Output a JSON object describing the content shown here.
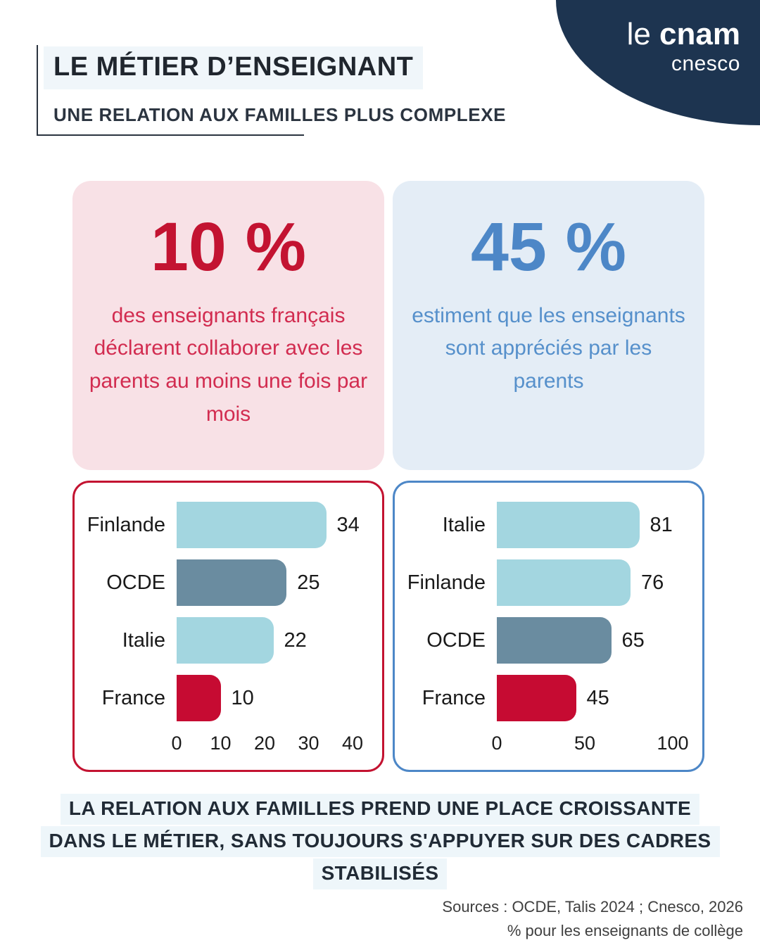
{
  "brand": {
    "logo_light": "le ",
    "logo_bold": "cnam",
    "logo_sub": "cnesco",
    "blob_color": "#1d3450"
  },
  "header": {
    "title": "LE MÉTIER D’ENSEIGNANT",
    "subtitle": "UNE RELATION AUX FAMILLES PLUS COMPLEXE",
    "highlight_color": "#f0f6fa"
  },
  "stat_cards": [
    {
      "value": "10 %",
      "description": "des enseignants français déclarent collaborer avec les parents au moins une fois par mois",
      "accent": "#c31331",
      "text_color": "#d22c50",
      "bg": "#f8e1e6"
    },
    {
      "value": "45 %",
      "description": "estiment que les enseignants sont appréciés par les parents",
      "accent": "#4d87c7",
      "text_color": "#5690cb",
      "bg": "#e4edf6"
    }
  ],
  "chart_data": [
    {
      "type": "bar",
      "orientation": "horizontal",
      "title": "",
      "categories": [
        "Finlande",
        "OCDE",
        "Italie",
        "France"
      ],
      "values": [
        34,
        25,
        22,
        10
      ],
      "bar_colors": [
        "#a3d6e0",
        "#6a8ca0",
        "#a3d6e0",
        "#c60b32"
      ],
      "xlim": [
        0,
        40
      ],
      "xticks": [
        0,
        10,
        20,
        30,
        40
      ],
      "grid": false,
      "legend": false,
      "border_color": "#c31331"
    },
    {
      "type": "bar",
      "orientation": "horizontal",
      "title": "",
      "categories": [
        "Italie",
        "Finlande",
        "OCDE",
        "France"
      ],
      "values": [
        81,
        76,
        65,
        45
      ],
      "bar_colors": [
        "#a3d6e0",
        "#a3d6e0",
        "#6a8ca0",
        "#c60b32"
      ],
      "xlim": [
        0,
        100
      ],
      "xticks": [
        0,
        50,
        100
      ],
      "grid": false,
      "legend": false,
      "border_color": "#4d87c7"
    }
  ],
  "headline": {
    "lines": [
      "LA RELATION AUX FAMILLES PREND UNE PLACE CROISSANTE",
      "DANS LE MÉTIER, SANS TOUJOURS S'APPUYER SUR DES CADRES",
      "STABILISÉS"
    ],
    "highlight_color": "#eef6fa"
  },
  "footer": {
    "sources": "Sources : OCDE, Talis 2024 ; Cnesco, 2026",
    "note": "% pour les enseignants de collège"
  }
}
